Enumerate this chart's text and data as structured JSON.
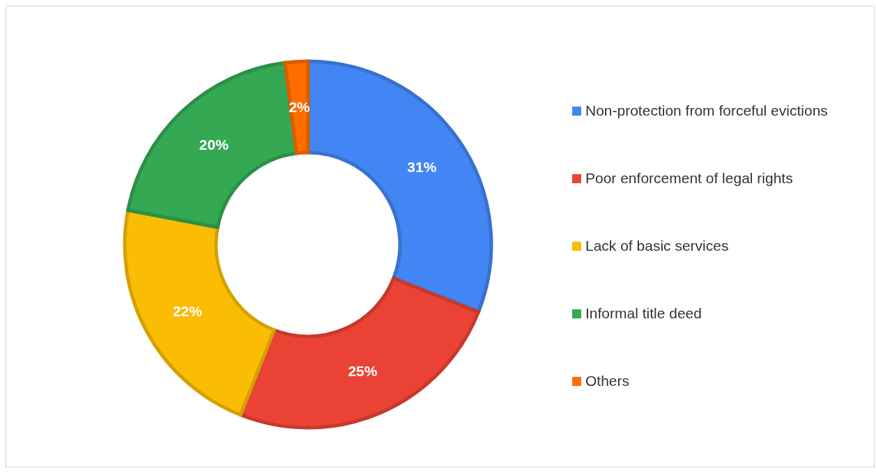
{
  "chart_data": {
    "type": "donut",
    "categories": [
      "Non-protection from forceful evictions",
      "Poor enforcement of legal rights",
      "Lack of basic services",
      "Informal title deed",
      "Others"
    ],
    "values": [
      31,
      25,
      22,
      20,
      2
    ],
    "colors": [
      "#4285f4",
      "#ea4335",
      "#fbbc04",
      "#34a853",
      "#ff6d01"
    ],
    "value_labels": [
      "31%",
      "25%",
      "22%",
      "20%",
      "2%"
    ],
    "legend": "right"
  }
}
